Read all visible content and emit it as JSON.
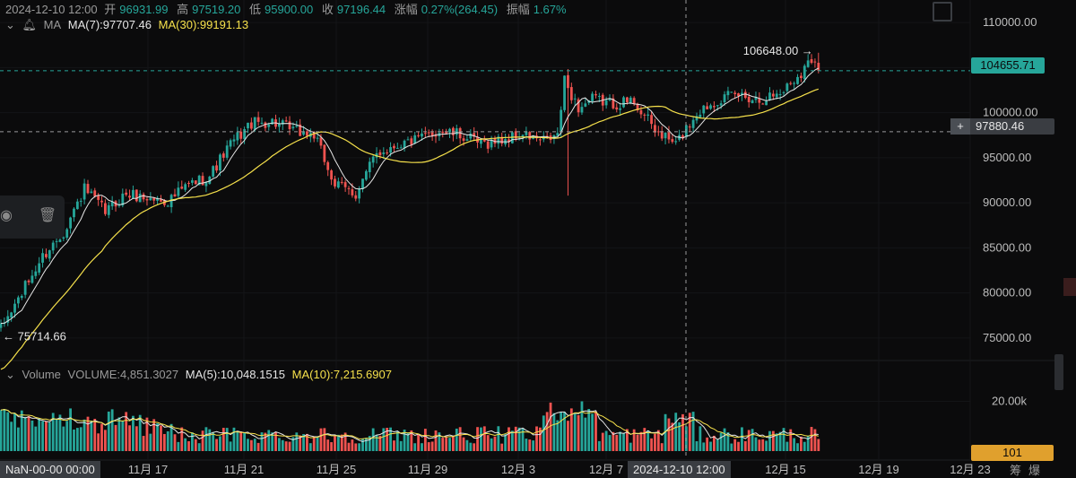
{
  "header": {
    "datetime": "2024-12-10 12:00",
    "open_label": "开",
    "open": "96931.99",
    "high_label": "高",
    "high": "97519.20",
    "low_label": "低",
    "low": "95900.00",
    "close_label": "收",
    "close": "97196.44",
    "change_label": "涨幅",
    "change": "0.27%(264.45)",
    "amplitude_label": "振幅",
    "amplitude": "1.67%"
  },
  "ma_legend": {
    "name": "MA",
    "ma7": "MA(7):97707.46",
    "ma30": "MA(30):99191.13"
  },
  "vol_legend": {
    "name": "Volume",
    "volume": "VOLUME:4,851.3027",
    "ma5": "MA(5):10,048.1515",
    "ma10": "MA(10):7,215.6907"
  },
  "tags": {
    "last_price": "104655.71",
    "crosshair_price": "97880.46",
    "volume_value": "101",
    "crosshair_time": "2024-12-10 12:00",
    "left_time": "NaN-00-00 00:00",
    "high_note": "106648.00 →",
    "low_note": "← 75714.66",
    "corner": "筹爆"
  },
  "icons": {
    "bell": "bell-icon",
    "eye": "eye-icon",
    "trash": "trash-icon",
    "fullscreen": "fullscreen-icon",
    "plus": "plus-icon"
  },
  "colors": {
    "up": "#26a69a",
    "down": "#ef5350",
    "ma7": "#e6e6e6",
    "ma30": "#f5e04b",
    "background": "#0b0b0c"
  },
  "chart_data": {
    "type": "candlestick",
    "price_axis": {
      "ticks": [
        "110000.00",
        "105000.00",
        "100000.00",
        "95000.00",
        "90000.00",
        "85000.00",
        "80000.00",
        "75000.00"
      ],
      "range": [
        72500,
        112500
      ]
    },
    "volume_axis": {
      "ticks": [
        "20.00k"
      ],
      "range": [
        0,
        27000
      ]
    },
    "time_axis": {
      "ticks": [
        "11月 17",
        "11月 21",
        "11月 25",
        "11月 29",
        "12月 3",
        "12月 7",
        "12月 15",
        "12月 19",
        "12月 23"
      ]
    },
    "last_price_line": 104655.71,
    "crosshair": {
      "price": 97880.46,
      "time": "2024-12-10 12:00"
    },
    "high_point": 106648.0,
    "low_point": 75714.66,
    "anchors": [
      [
        0,
        76000
      ],
      [
        6,
        80000
      ],
      [
        12,
        84000
      ],
      [
        18,
        86800
      ],
      [
        24,
        91500
      ],
      [
        30,
        89000
      ],
      [
        36,
        91000
      ],
      [
        42,
        90500
      ],
      [
        48,
        90200
      ],
      [
        54,
        92000
      ],
      [
        60,
        93000
      ],
      [
        66,
        96500
      ],
      [
        72,
        98800
      ],
      [
        78,
        99000
      ],
      [
        84,
        98000
      ],
      [
        90,
        97500
      ],
      [
        96,
        92000
      ],
      [
        102,
        91000
      ],
      [
        108,
        95500
      ],
      [
        114,
        96500
      ],
      [
        120,
        97000
      ],
      [
        126,
        98000
      ],
      [
        132,
        97500
      ],
      [
        138,
        96500
      ],
      [
        144,
        97000
      ],
      [
        150,
        97500
      ],
      [
        156,
        96800
      ],
      [
        160,
        97500
      ],
      [
        162,
        103500
      ],
      [
        166,
        100500
      ],
      [
        170,
        101500
      ],
      [
        176,
        101000
      ],
      [
        182,
        101300
      ],
      [
        188,
        98000
      ],
      [
        194,
        96500
      ],
      [
        200,
        100000
      ],
      [
        206,
        101500
      ],
      [
        212,
        102000
      ],
      [
        218,
        101500
      ],
      [
        224,
        102200
      ],
      [
        230,
        104500
      ],
      [
        233,
        106000
      ]
    ],
    "spike": {
      "index": 163,
      "low": 90800
    },
    "ma7_at_crosshair": 97707.46,
    "ma30_at_crosshair": 99191.13,
    "volume_last": 4851.3027,
    "volume_ma5": 10048.1515,
    "volume_ma10": 7215.6907
  }
}
